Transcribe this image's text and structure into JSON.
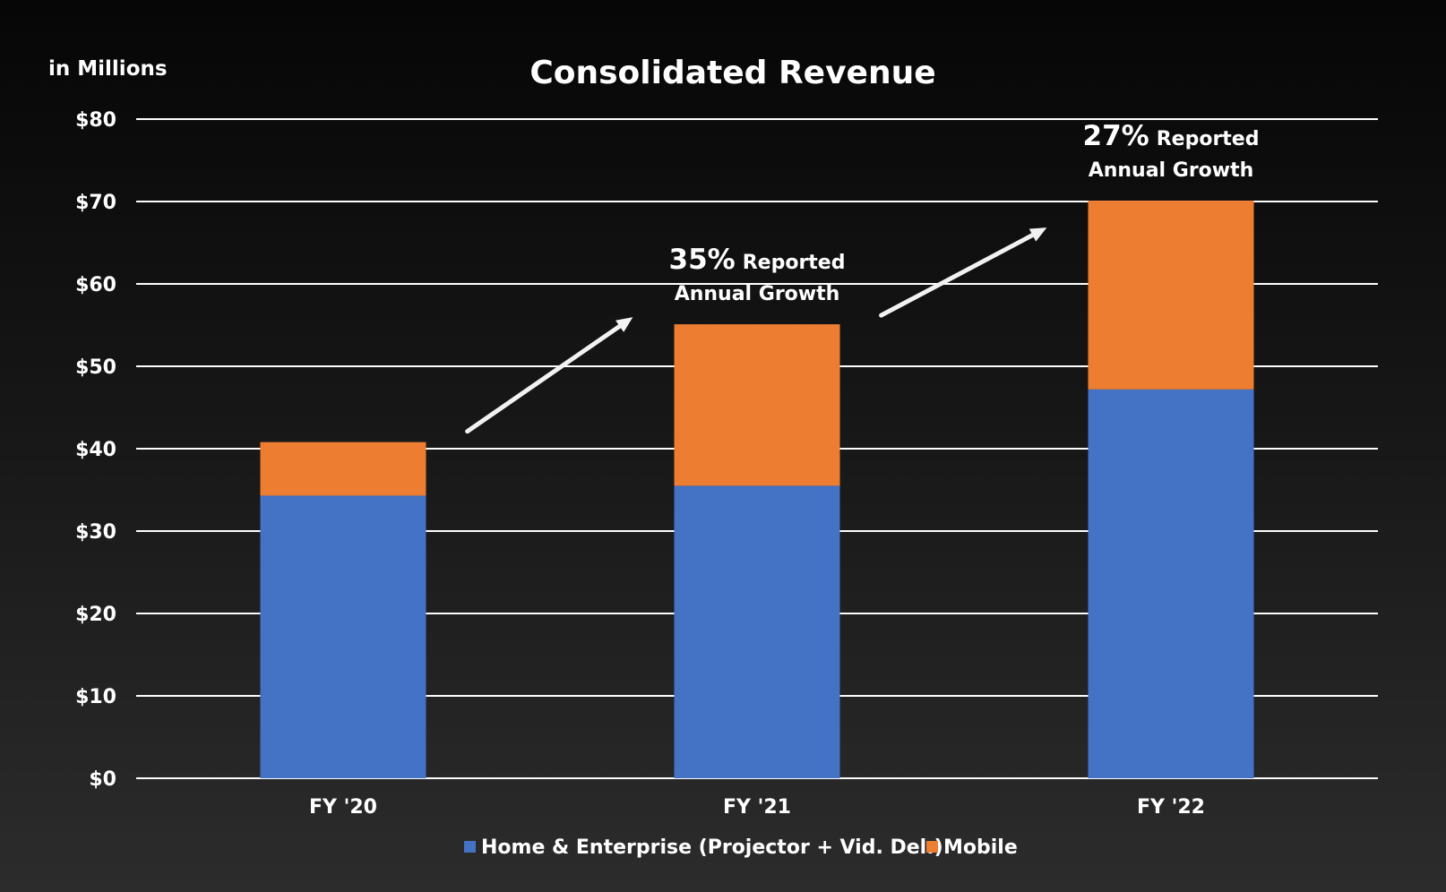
{
  "chart_data": {
    "type": "bar",
    "stacked": true,
    "title": "Consolidated Revenue",
    "unit_label": "in Millions",
    "categories": [
      "FY '20",
      "FY '21",
      "FY '22"
    ],
    "series": [
      {
        "name": "Home & Enterprise (Projector + Vid. Del.)",
        "values": [
          34.3,
          35.5,
          47.2
        ],
        "color": "#4472C4"
      },
      {
        "name": "Mobile",
        "values": [
          6.5,
          19.6,
          22.9
        ],
        "color": "#ED7D31"
      }
    ],
    "ylim": [
      0,
      80
    ],
    "yticks": [
      0,
      10,
      20,
      30,
      40,
      50,
      60,
      70,
      80
    ],
    "ytick_labels": [
      "$0",
      "$10",
      "$20",
      "$30",
      "$40",
      "$50",
      "$60",
      "$70",
      "$80"
    ],
    "grid": true,
    "legend_position": "bottom-center",
    "annotations": [
      {
        "percent": "35%",
        "line1": "Reported",
        "line2": "Annual Growth",
        "category": "FY '21"
      },
      {
        "percent": "27%",
        "line1": "Reported",
        "line2": "Annual Growth",
        "category": "FY '22"
      }
    ]
  },
  "colors": {
    "gridline": "#ffffff",
    "arrow": "#f2f2f2",
    "text": "#ffffff"
  }
}
